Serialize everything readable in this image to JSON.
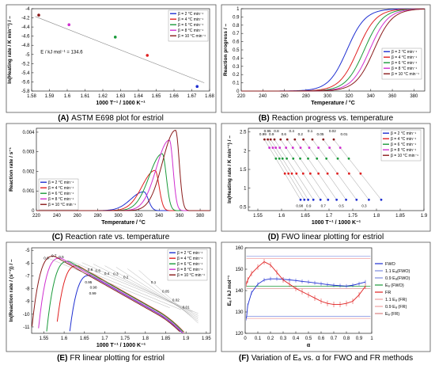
{
  "figure": {
    "panel_count": 6
  },
  "chart_data": [
    {
      "id": "A",
      "type": "scatter",
      "caption_label": "(A)",
      "caption": "ASTM E698 plot for estriol",
      "xlabel": "1000 T⁻¹ / 1000 K⁻¹",
      "ylabel": "ln(Heating rate / K min⁻¹) / –",
      "xlim": [
        1.58,
        1.68
      ],
      "ylim": [
        -5.8,
        -4.0
      ],
      "xticks": [
        "1.58",
        "1.59",
        "1.6",
        "1.61",
        "1.62",
        "1.63",
        "1.64",
        "1.65",
        "1.66",
        "1.67",
        "1.68"
      ],
      "yticks": [
        "-4",
        "-4.2",
        "-4.4",
        "-4.6",
        "-4.8",
        "-5",
        "-5.2",
        "-5.4",
        "-5.6",
        "-5.8"
      ],
      "annotation": "E / kJ mol⁻¹ = 134.6",
      "legend_position": "top-right",
      "series": [
        {
          "name": "β =  2 °C min⁻¹",
          "color": "#1f2fd1",
          "x": [
            1.673
          ],
          "y": [
            -5.7
          ]
        },
        {
          "name": "β =  4 °C min⁻¹",
          "color": "#e02020",
          "x": [
            1.645
          ],
          "y": [
            -5.02
          ]
        },
        {
          "name": "β =  6 °C min⁻¹",
          "color": "#1a9a3a",
          "x": [
            1.627
          ],
          "y": [
            -4.62
          ]
        },
        {
          "name": "β =  8 °C min⁻¹",
          "color": "#d030d0",
          "x": [
            1.601
          ],
          "y": [
            -4.35
          ]
        },
        {
          "name": "β = 10 °C min⁻¹",
          "color": "#8a1a1a",
          "x": [
            1.584
          ],
          "y": [
            -4.14
          ]
        }
      ],
      "fit_line": {
        "x": [
          1.582,
          1.677
        ],
        "y": [
          -4.17,
          -5.62
        ]
      }
    },
    {
      "id": "B",
      "type": "line",
      "caption_label": "(B)",
      "caption": "Reaction progress vs. temperature",
      "xlabel": "Temperature / °C",
      "ylabel": "Reaction progress / –",
      "xlim": [
        220,
        390
      ],
      "ylim": [
        0,
        1
      ],
      "xticks": [
        "220",
        "240",
        "260",
        "280",
        "300",
        "320",
        "340",
        "360",
        "380"
      ],
      "yticks": [
        "0",
        "0.1",
        "0.2",
        "0.3",
        "0.4",
        "0.5",
        "0.6",
        "0.7",
        "0.8",
        "0.9",
        "1"
      ],
      "legend_position": "center-right",
      "series": [
        {
          "name": "β =  2 °C min⁻¹",
          "color": "#1f2fd1",
          "midpoint": 318,
          "width": 8.5
        },
        {
          "name": "β =  4 °C min⁻¹",
          "color": "#e02020",
          "midpoint": 328,
          "width": 8.5
        },
        {
          "name": "β =  6 °C min⁻¹",
          "color": "#1a9a3a",
          "midpoint": 334,
          "width": 8.5
        },
        {
          "name": "β =  8 °C min⁻¹",
          "color": "#d030d0",
          "midpoint": 339,
          "width": 8.5
        },
        {
          "name": "β = 10 °C min⁻¹",
          "color": "#8a1a1a",
          "midpoint": 343,
          "width": 8.5
        }
      ]
    },
    {
      "id": "C",
      "type": "line",
      "caption_label": "(C)",
      "caption": "Reaction rate vs. temperature",
      "xlabel": "Temperature / °C",
      "ylabel": "Reaction rate / s⁻¹",
      "xlim": [
        220,
        390
      ],
      "ylim": [
        0,
        0.0042
      ],
      "xticks": [
        "220",
        "240",
        "260",
        "280",
        "300",
        "320",
        "340",
        "360",
        "380"
      ],
      "yticks": [
        "0",
        "0.001",
        "0.002",
        "0.003",
        "0.004"
      ],
      "legend_position": "bottom-left",
      "series": [
        {
          "name": "β =  2 °C min⁻¹",
          "color": "#1f2fd1",
          "peak_x": 325,
          "peak_y": 0.00096,
          "left_w": 18,
          "right_w": 6
        },
        {
          "name": "β =  4 °C min⁻¹",
          "color": "#e02020",
          "peak_x": 336,
          "peak_y": 0.00205,
          "left_w": 18,
          "right_w": 5.5
        },
        {
          "name": "β =  6 °C min⁻¹",
          "color": "#1a9a3a",
          "peak_x": 343,
          "peak_y": 0.0029,
          "left_w": 18,
          "right_w": 5.5
        },
        {
          "name": "β =  8 °C min⁻¹",
          "color": "#d030d0",
          "peak_x": 350,
          "peak_y": 0.0036,
          "left_w": 18,
          "right_w": 5
        },
        {
          "name": "β = 10 °C min⁻¹",
          "color": "#8a1a1a",
          "peak_x": 356,
          "peak_y": 0.0041,
          "left_w": 18,
          "right_w": 5
        }
      ]
    },
    {
      "id": "D",
      "type": "scatter",
      "caption_label": "(D)",
      "caption": "FWO linear plotting for estriol",
      "xlabel": "1000 T⁻¹ / 1000 K⁻¹",
      "ylabel": "ln(Heating rate / K min⁻¹) / –",
      "xlim": [
        1.53,
        1.9
      ],
      "ylim": [
        0.4,
        2.6
      ],
      "xticks": [
        "1.55",
        "1.6",
        "1.65",
        "1.7",
        "1.75",
        "1.8",
        "1.85",
        "1.9"
      ],
      "yticks": [
        "0.5",
        "1",
        "1.5",
        "2",
        "2.5"
      ],
      "legend_position": "top-right",
      "alpha_labels_top": [
        "0.99",
        "0.95",
        "0.9",
        "0.8",
        "0.6",
        "0.4",
        "0.2",
        "0.1",
        "0.05",
        "0.02",
        "0.01"
      ],
      "alpha_labels_bottom": [
        "0.98",
        "0.9",
        "0.7",
        "0.5",
        "0.3"
      ],
      "series": [
        {
          "name": "β =  2 °C min⁻¹",
          "color": "#1f2fd1",
          "y": 0.69
        },
        {
          "name": "β =  4 °C min⁻¹",
          "color": "#e02020",
          "y": 1.39
        },
        {
          "name": "β =  6 °C min⁻¹",
          "color": "#1a9a3a",
          "y": 1.79
        },
        {
          "name": "β =  8 °C min⁻¹",
          "color": "#d030d0",
          "y": 2.08
        },
        {
          "name": "β = 10 °C min⁻¹",
          "color": "#8a1a1a",
          "y": 2.3
        }
      ],
      "x_top": [
        1.564,
        1.571,
        1.577,
        1.585,
        1.598,
        1.612,
        1.628,
        1.646,
        1.665,
        1.688,
        1.71
      ],
      "x_bottom": [
        1.64,
        1.648,
        1.656,
        1.667,
        1.682,
        1.698,
        1.716,
        1.736,
        1.758,
        1.784,
        1.81
      ]
    },
    {
      "id": "E",
      "type": "line",
      "caption_label": "(E)",
      "caption": "FR linear plotting for estriol",
      "xlabel": "1000 T⁻¹ / 1000 K⁻¹",
      "ylabel": "ln(Reaction rate / (s⁻¹)) / –",
      "xlim": [
        1.52,
        1.96
      ],
      "ylim": [
        -11.5,
        -4.8
      ],
      "xticks": [
        "1.55",
        "1.6",
        "1.65",
        "1.7",
        "1.75",
        "1.8",
        "1.85",
        "1.9",
        "1.95"
      ],
      "yticks": [
        "-5",
        "-6",
        "-7",
        "-8",
        "-9",
        "-10",
        "-11"
      ],
      "legend_position": "top-right",
      "alpha_labels": [
        "0.9",
        "0.7",
        "0.5",
        "0.8",
        "0.6",
        "0.4",
        "0.3",
        "0.2",
        "0.1",
        "0.05",
        "0.02",
        "0.01",
        "0.95",
        "0.98",
        "0.99"
      ],
      "series": [
        {
          "name": "β =  2 °C min⁻¹",
          "color": "#1f2fd1",
          "x_peak": 1.665,
          "y_peak": -6.95
        },
        {
          "name": "β =  4 °C min⁻¹",
          "color": "#e02020",
          "x_peak": 1.634,
          "y_peak": -6.2
        },
        {
          "name": "β =  6 °C min⁻¹",
          "color": "#1a9a3a",
          "x_peak": 1.612,
          "y_peak": -5.85
        },
        {
          "name": "β =  8 °C min⁻¹",
          "color": "#d030d0",
          "x_peak": 1.592,
          "y_peak": -5.6
        },
        {
          "name": "β = 10 °C min⁻¹",
          "color": "#8a1a1a",
          "x_peak": 1.576,
          "y_peak": -5.45
        }
      ]
    },
    {
      "id": "F",
      "type": "line",
      "caption_label": "(F)",
      "caption": "Variation of Eₐ vs. α for FWO and FR methods",
      "xlabel": "α",
      "ylabel": "Eₐ / kJ mol⁻¹",
      "xlim": [
        0,
        1
      ],
      "ylim": [
        120,
        160
      ],
      "xticks": [
        "0",
        "0.1",
        "0.2",
        "0.3",
        "0.4",
        "0.5",
        "0.6",
        "0.7",
        "0.8",
        "0.9",
        "1"
      ],
      "yticks": [
        "120",
        "130",
        "140",
        "150",
        "160"
      ],
      "legend_position": "right",
      "legend": [
        "FWO",
        "1.1 Eₐ(FWO)",
        "0.9 Eₐ(FWO)",
        "Eₐ (FWO)",
        "FR",
        "1.1 Eₐ (FR)",
        "0.9 Eₐ (FR)",
        "Eₐ (FR)"
      ],
      "legend_colors": [
        "#1f2fd1",
        "#7a8ae0",
        "#7a8ae0",
        "#1a9a3a",
        "#e02020",
        "#f0a0a0",
        "#f0a0a0",
        "#d88080"
      ],
      "fwo": {
        "alpha": [
          0.01,
          0.02,
          0.05,
          0.1,
          0.15,
          0.2,
          0.25,
          0.3,
          0.35,
          0.4,
          0.45,
          0.5,
          0.55,
          0.6,
          0.65,
          0.7,
          0.75,
          0.8,
          0.85,
          0.9,
          0.95
        ],
        "E": [
          127,
          133,
          139,
          143,
          145,
          145.5,
          145.5,
          145.3,
          145,
          144.7,
          144.3,
          144,
          143.6,
          143.2,
          142.8,
          142.5,
          142.3,
          142.1,
          142.5,
          143.2,
          144
        ]
      },
      "fr": {
        "alpha": [
          0.01,
          0.02,
          0.05,
          0.1,
          0.15,
          0.2,
          0.25,
          0.3,
          0.35,
          0.4,
          0.45,
          0.5,
          0.55,
          0.6,
          0.65,
          0.7,
          0.75,
          0.8,
          0.85,
          0.9,
          0.95
        ],
        "E": [
          143,
          145,
          148,
          151,
          153.5,
          152,
          148.5,
          145,
          143,
          141,
          139.5,
          138,
          136.5,
          135,
          134,
          133.5,
          133.5,
          134,
          135,
          138,
          142
        ]
      },
      "ref_lines": {
        "fwo_mean": 142,
        "fwo_hi": 156,
        "fwo_lo": 128,
        "fr_mean": 141,
        "fr_hi": 155,
        "fr_lo": 127
      }
    }
  ]
}
